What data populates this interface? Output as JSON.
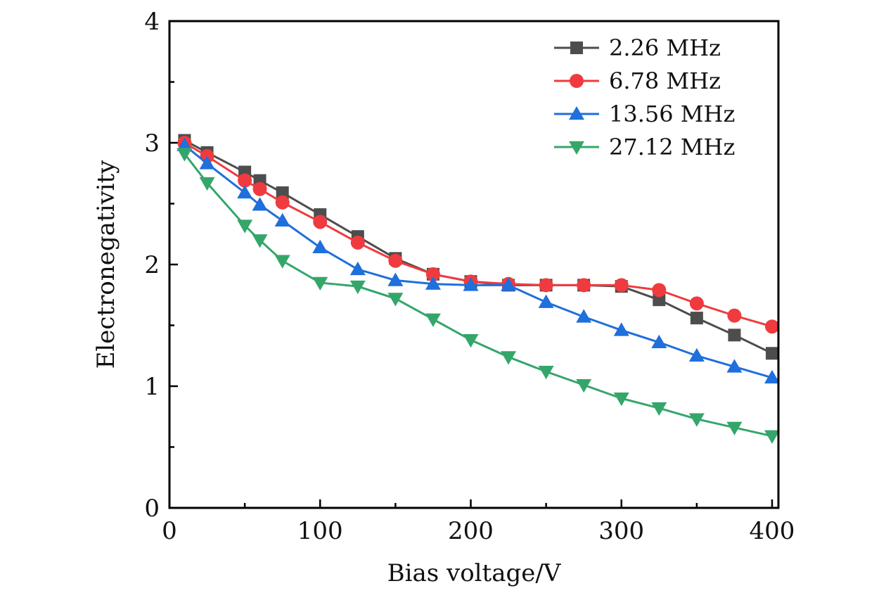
{
  "chart_data": {
    "type": "line",
    "title": "",
    "xlabel": "Bias voltage/V",
    "ylabel": "Electronegativity",
    "xlim": [
      0,
      402
    ],
    "ylim": [
      0,
      4
    ],
    "x_major_ticks": [
      0,
      100,
      200,
      300,
      400
    ],
    "x_minor_ticks": [
      50,
      150,
      250,
      350
    ],
    "y_major_ticks": [
      0,
      1,
      2,
      3,
      4
    ],
    "y_minor_ticks": [
      0.5,
      1.5,
      2.5,
      3.5
    ],
    "x_tick_labels": [
      "0",
      "100",
      "200",
      "300",
      "400"
    ],
    "y_tick_labels": [
      "0",
      "1",
      "2",
      "3",
      "4"
    ],
    "grid": false,
    "legend_position": "top-right",
    "x": [
      10,
      25,
      50,
      60,
      75,
      100,
      125,
      150,
      175,
      200,
      225,
      250,
      275,
      300,
      325,
      350,
      375,
      400
    ],
    "series": [
      {
        "name": "2.26 MHz",
        "color": "#4d4d4d",
        "marker": "square",
        "values": [
          3.02,
          2.92,
          2.76,
          2.69,
          2.59,
          2.41,
          2.23,
          2.05,
          1.92,
          1.86,
          1.83,
          1.83,
          1.83,
          1.82,
          1.71,
          1.56,
          1.42,
          1.27
        ]
      },
      {
        "name": "6.78 MHz",
        "color": "#ef3b3f",
        "marker": "circle",
        "values": [
          3.0,
          2.89,
          2.69,
          2.62,
          2.51,
          2.35,
          2.18,
          2.03,
          1.92,
          1.86,
          1.84,
          1.83,
          1.83,
          1.83,
          1.79,
          1.68,
          1.58,
          1.49
        ]
      },
      {
        "name": "13.56 MHz",
        "color": "#1f6fdc",
        "marker": "triangle-up",
        "values": [
          2.98,
          2.83,
          2.59,
          2.49,
          2.36,
          2.14,
          1.96,
          1.87,
          1.84,
          1.83,
          1.83,
          1.69,
          1.57,
          1.46,
          1.36,
          1.25,
          1.16,
          1.07
        ]
      },
      {
        "name": "27.12 MHz",
        "color": "#34a66a",
        "marker": "triangle-down",
        "values": [
          2.91,
          2.67,
          2.32,
          2.2,
          2.03,
          1.85,
          1.82,
          1.72,
          1.55,
          1.38,
          1.24,
          1.12,
          1.01,
          0.9,
          0.82,
          0.73,
          0.66,
          0.59
        ]
      }
    ]
  }
}
